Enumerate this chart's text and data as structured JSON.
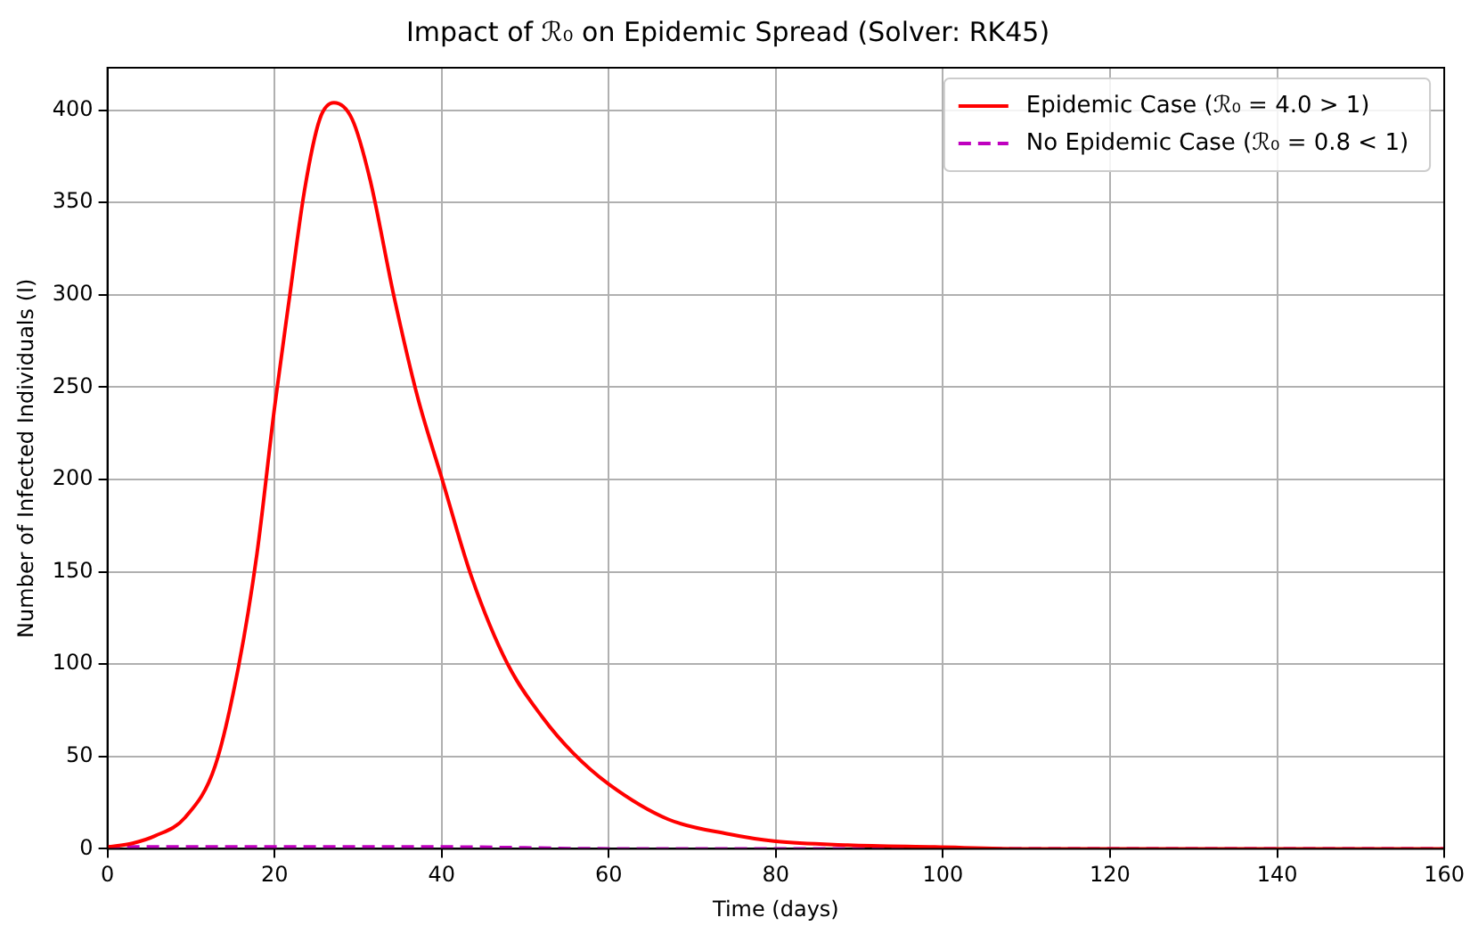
{
  "chart_data": {
    "type": "line",
    "title": "Impact of ℛ₀ on Epidemic Spread (Solver: RK45)",
    "xlabel": "Time (days)",
    "ylabel": "Number of Infected Individuals (I)",
    "xlim": [
      0,
      160
    ],
    "xticks": [
      0,
      20,
      40,
      60,
      80,
      100,
      120,
      140,
      160
    ],
    "ylim": [
      0,
      423
    ],
    "yticks": [
      0,
      50,
      100,
      150,
      200,
      250,
      300,
      350,
      400
    ],
    "grid": true,
    "legend": "top right",
    "marker": "none",
    "series": [
      {
        "name": "Epidemic Case (ℛ₀ = 4.0 > 1)",
        "color": "#ff0000",
        "line_style": "solid",
        "x": [
          0,
          3,
          5.7,
          9.3,
          12.9,
          15.7,
          17.9,
          20,
          21.8,
          23.6,
          25.4,
          27.1,
          29.3,
          31.4,
          34.3,
          37.1,
          40,
          43.6,
          47.9,
          52.1,
          55.7,
          60,
          67.1,
          74.3,
          80,
          88.6,
          99,
          110,
          120,
          140,
          160
        ],
        "values": [
          1,
          3,
          7,
          17,
          45,
          99,
          160,
          239,
          299,
          357,
          395,
          404,
          395,
          363,
          299,
          245,
          201,
          147,
          100,
          71,
          52,
          35,
          16,
          8,
          4,
          2,
          1,
          0,
          0,
          0,
          0
        ]
      },
      {
        "name": "No Epidemic Case (ℛ₀ = 0.8 < 1)",
        "color": "#bf00bf",
        "line_style": "dashed",
        "x": [
          0,
          20,
          40,
          60,
          80,
          100,
          160
        ],
        "values": [
          1,
          1,
          1,
          0,
          0,
          0,
          0
        ]
      }
    ]
  }
}
